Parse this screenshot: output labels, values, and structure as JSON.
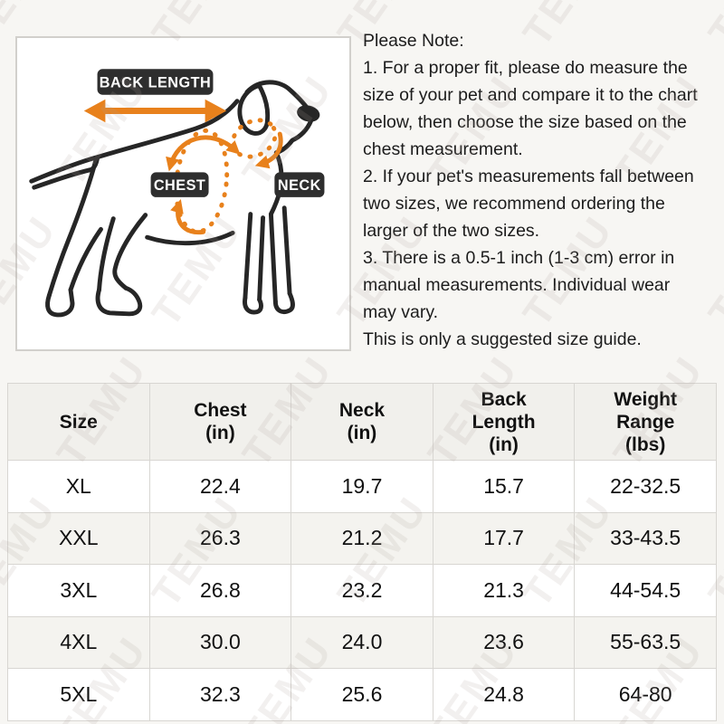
{
  "watermark": {
    "text": "TEMU"
  },
  "diagram": {
    "back_length_label": "BACK LENGTH",
    "chest_label": "CHEST",
    "neck_label": "NECK",
    "colors": {
      "arrow_orange": "#E8811C",
      "label_bg": "#2E2E2E",
      "label_text": "#FFFFFF",
      "dog_outline": "#262626"
    }
  },
  "note": {
    "title": "Please Note:",
    "lines": [
      "1. For a proper fit, please do measure the",
      "size of your pet and compare it to the chart",
      "below, then choose the size based on the",
      "chest measurement.",
      "2. If your pet's measurements fall between",
      "two sizes, we recommend ordering the",
      "larger of the two sizes.",
      "3. There is a 0.5-1 inch (1-3 cm) error in",
      "manual measurements. Individual wear",
      "may vary.",
      "This is only a suggested size guide."
    ]
  },
  "size_chart": {
    "columns": [
      [
        "Size"
      ],
      [
        "Chest",
        "(in)"
      ],
      [
        "Neck",
        "(in)"
      ],
      [
        "Back",
        "Length",
        "(in)"
      ],
      [
        "Weight",
        "Range",
        "(lbs)"
      ]
    ],
    "rows": [
      {
        "size": "XL",
        "chest_in": "22.4",
        "neck_in": "19.7",
        "back_length_in": "15.7",
        "weight_range_lbs": "22-32.5"
      },
      {
        "size": "XXL",
        "chest_in": "26.3",
        "neck_in": "21.2",
        "back_length_in": "17.7",
        "weight_range_lbs": "33-43.5"
      },
      {
        "size": "3XL",
        "chest_in": "26.8",
        "neck_in": "23.2",
        "back_length_in": "21.3",
        "weight_range_lbs": "44-54.5"
      },
      {
        "size": "4XL",
        "chest_in": "30.0",
        "neck_in": "24.0",
        "back_length_in": "23.6",
        "weight_range_lbs": "55-63.5"
      },
      {
        "size": "5XL",
        "chest_in": "32.3",
        "neck_in": "25.6",
        "back_length_in": "24.8",
        "weight_range_lbs": "64-80"
      }
    ]
  }
}
